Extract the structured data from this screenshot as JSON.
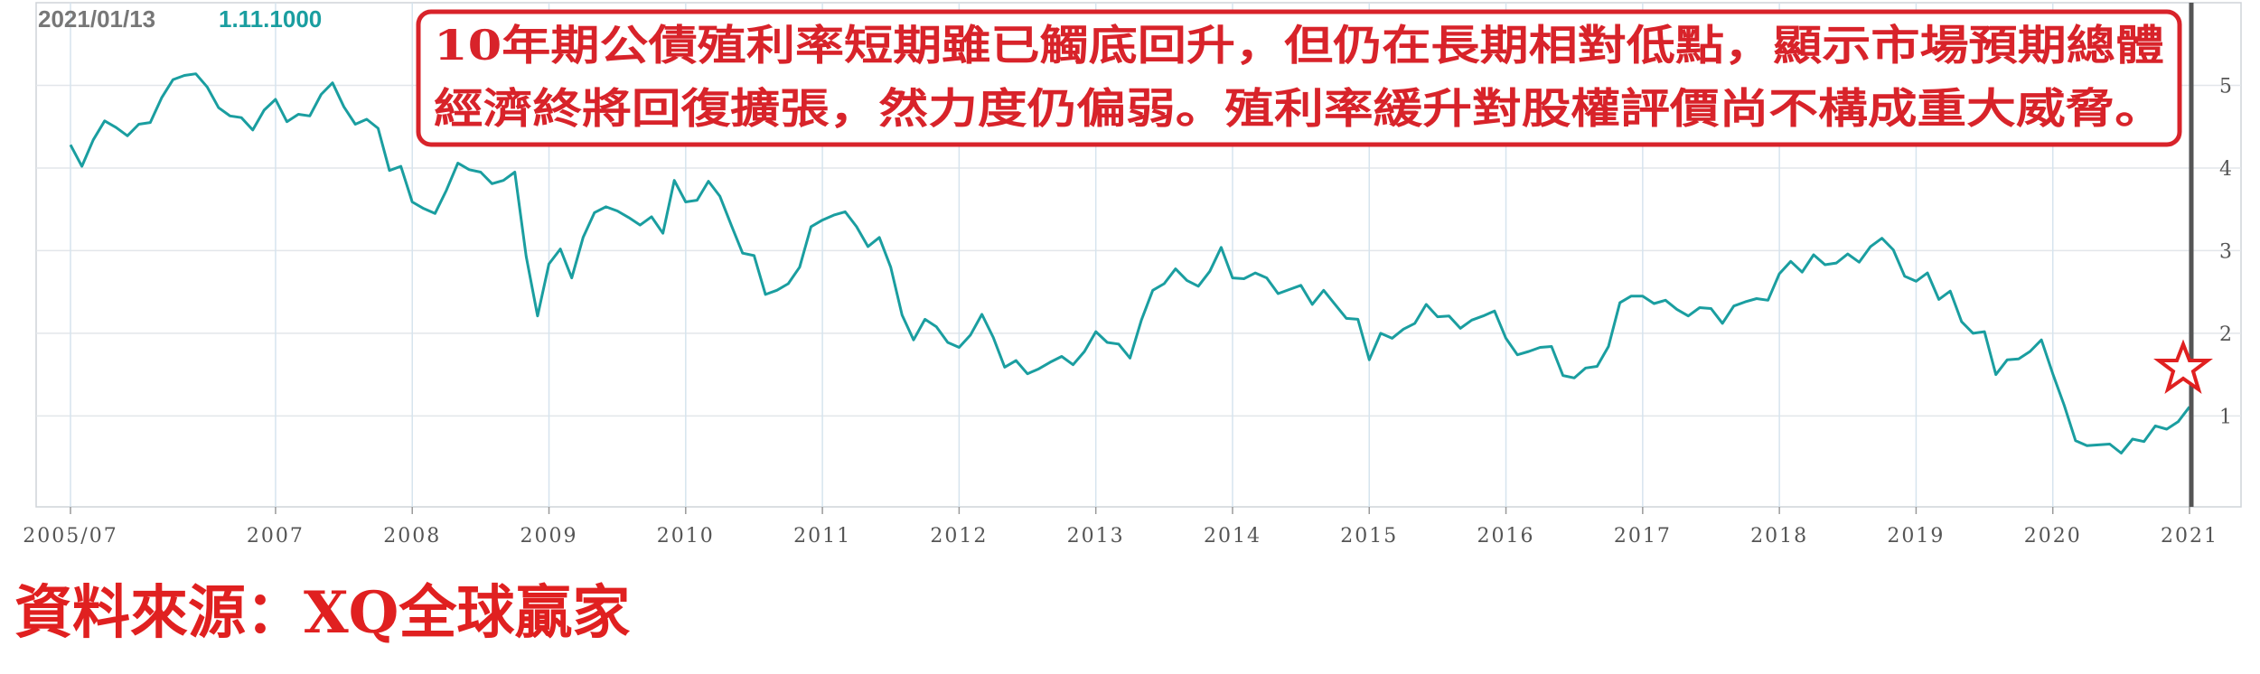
{
  "header": {
    "date": "2021/01/13",
    "value": "1.11.1000"
  },
  "source": "資料來源：XQ全球贏家",
  "chart_data": {
    "type": "line",
    "annotations": [
      "10年期公債殖利率短期雖已觸底回升，但仍在長期相對低點，顯示市場預期總體",
      "經濟終將回復擴張，然力度仍偏弱。殖利率緩升對股權評價尚不構成重大威脅。"
    ],
    "categories": [
      "2005/07",
      "2005/08",
      "2005/09",
      "2005/10",
      "2005/11",
      "2005/12",
      "2006/01",
      "2006/02",
      "2006/03",
      "2006/04",
      "2006/05",
      "2006/06",
      "2006/07",
      "2006/08",
      "2006/09",
      "2006/10",
      "2006/11",
      "2006/12",
      "2007/01",
      "2007/02",
      "2007/03",
      "2007/04",
      "2007/05",
      "2007/06",
      "2007/07",
      "2007/08",
      "2007/09",
      "2007/10",
      "2007/11",
      "2007/12",
      "2008/01",
      "2008/02",
      "2008/03",
      "2008/04",
      "2008/05",
      "2008/06",
      "2008/07",
      "2008/08",
      "2008/09",
      "2008/10",
      "2008/11",
      "2008/12",
      "2009/01",
      "2009/02",
      "2009/03",
      "2009/04",
      "2009/05",
      "2009/06",
      "2009/07",
      "2009/08",
      "2009/09",
      "2009/10",
      "2009/11",
      "2009/12",
      "2010/01",
      "2010/02",
      "2010/03",
      "2010/04",
      "2010/05",
      "2010/06",
      "2010/07",
      "2010/08",
      "2010/09",
      "2010/10",
      "2010/11",
      "2010/12",
      "2011/01",
      "2011/02",
      "2011/03",
      "2011/04",
      "2011/05",
      "2011/06",
      "2011/07",
      "2011/08",
      "2011/09",
      "2011/10",
      "2011/11",
      "2011/12",
      "2012/01",
      "2012/02",
      "2012/03",
      "2012/04",
      "2012/05",
      "2012/06",
      "2012/07",
      "2012/08",
      "2012/09",
      "2012/10",
      "2012/11",
      "2012/12",
      "2013/01",
      "2013/02",
      "2013/03",
      "2013/04",
      "2013/05",
      "2013/06",
      "2013/07",
      "2013/08",
      "2013/09",
      "2013/10",
      "2013/11",
      "2013/12",
      "2014/01",
      "2014/02",
      "2014/03",
      "2014/04",
      "2014/05",
      "2014/06",
      "2014/07",
      "2014/08",
      "2014/09",
      "2014/10",
      "2014/11",
      "2014/12",
      "2015/01",
      "2015/02",
      "2015/03",
      "2015/04",
      "2015/05",
      "2015/06",
      "2015/07",
      "2015/08",
      "2015/09",
      "2015/10",
      "2015/11",
      "2015/12",
      "2016/01",
      "2016/02",
      "2016/03",
      "2016/04",
      "2016/05",
      "2016/06",
      "2016/07",
      "2016/08",
      "2016/09",
      "2016/10",
      "2016/11",
      "2016/12",
      "2017/01",
      "2017/02",
      "2017/03",
      "2017/04",
      "2017/05",
      "2017/06",
      "2017/07",
      "2017/08",
      "2017/09",
      "2017/10",
      "2017/11",
      "2017/12",
      "2018/01",
      "2018/02",
      "2018/03",
      "2018/04",
      "2018/05",
      "2018/06",
      "2018/07",
      "2018/08",
      "2018/09",
      "2018/10",
      "2018/11",
      "2018/12",
      "2019/01",
      "2019/02",
      "2019/03",
      "2019/04",
      "2019/05",
      "2019/06",
      "2019/07",
      "2019/08",
      "2019/09",
      "2019/10",
      "2019/11",
      "2019/12",
      "2020/01",
      "2020/02",
      "2020/03",
      "2020/04",
      "2020/05",
      "2020/06",
      "2020/07",
      "2020/08",
      "2020/09",
      "2020/10",
      "2020/11",
      "2020/12",
      "2021/01"
    ],
    "values": [
      4.28,
      4.02,
      4.34,
      4.57,
      4.49,
      4.39,
      4.53,
      4.55,
      4.85,
      5.07,
      5.12,
      5.14,
      4.98,
      4.73,
      4.63,
      4.61,
      4.46,
      4.7,
      4.83,
      4.56,
      4.65,
      4.63,
      4.89,
      5.03,
      4.74,
      4.53,
      4.59,
      4.48,
      3.97,
      4.02,
      3.59,
      3.51,
      3.45,
      3.73,
      4.06,
      3.98,
      3.95,
      3.81,
      3.85,
      3.95,
      2.93,
      2.21,
      2.84,
      3.02,
      2.67,
      3.16,
      3.46,
      3.53,
      3.48,
      3.4,
      3.31,
      3.41,
      3.21,
      3.85,
      3.59,
      3.61,
      3.84,
      3.66,
      3.31,
      2.97,
      2.94,
      2.47,
      2.52,
      2.6,
      2.8,
      3.29,
      3.37,
      3.43,
      3.47,
      3.29,
      3.05,
      3.16,
      2.8,
      2.22,
      1.92,
      2.17,
      2.08,
      1.89,
      1.83,
      1.98,
      2.23,
      1.95,
      1.59,
      1.67,
      1.51,
      1.57,
      1.65,
      1.72,
      1.62,
      1.78,
      2.02,
      1.89,
      1.87,
      1.7,
      2.16,
      2.52,
      2.6,
      2.78,
      2.64,
      2.57,
      2.75,
      3.04,
      2.67,
      2.66,
      2.73,
      2.67,
      2.48,
      2.53,
      2.58,
      2.35,
      2.52,
      2.35,
      2.18,
      2.17,
      1.68,
      2.0,
      1.94,
      2.05,
      2.12,
      2.35,
      2.2,
      2.21,
      2.06,
      2.16,
      2.21,
      2.27,
      1.94,
      1.74,
      1.78,
      1.83,
      1.84,
      1.49,
      1.46,
      1.58,
      1.6,
      1.84,
      2.37,
      2.45,
      2.45,
      2.36,
      2.4,
      2.29,
      2.21,
      2.31,
      2.3,
      2.12,
      2.33,
      2.38,
      2.42,
      2.4,
      2.72,
      2.87,
      2.74,
      2.95,
      2.83,
      2.85,
      2.96,
      2.86,
      3.05,
      3.15,
      3.01,
      2.69,
      2.63,
      2.73,
      2.41,
      2.51,
      2.14,
      2.0,
      2.02,
      1.5,
      1.68,
      1.69,
      1.78,
      1.92,
      1.51,
      1.13,
      0.7,
      0.64,
      0.65,
      0.66,
      0.55,
      0.72,
      0.69,
      0.88,
      0.84,
      0.93,
      1.11
    ],
    "color": "#1a9ea0",
    "ylim": [
      -0.1,
      6.0
    ],
    "yticks": [
      1,
      2,
      3,
      4,
      5
    ],
    "xticks": [
      "2005/07",
      {
        "value": "2007/01",
        "label": "2007"
      },
      {
        "value": "2008/01",
        "label": "2008"
      },
      {
        "value": "2009/01",
        "label": "2009"
      },
      {
        "value": "2010/01",
        "label": "2010"
      },
      {
        "value": "2011/01",
        "label": "2011"
      },
      {
        "value": "2012/01",
        "label": "2012"
      },
      {
        "value": "2013/01",
        "label": "2013"
      },
      {
        "value": "2014/01",
        "label": "2014"
      },
      {
        "value": "2015/01",
        "label": "2015"
      },
      {
        "value": "2016/01",
        "label": "2016"
      },
      {
        "value": "2017/01",
        "label": "2017"
      },
      {
        "value": "2018/01",
        "label": "2018"
      },
      {
        "value": "2019/01",
        "label": "2019"
      },
      {
        "value": "2020/01",
        "label": "2020"
      },
      {
        "value": "2021/01",
        "label": "2021"
      }
    ],
    "grid": true
  }
}
